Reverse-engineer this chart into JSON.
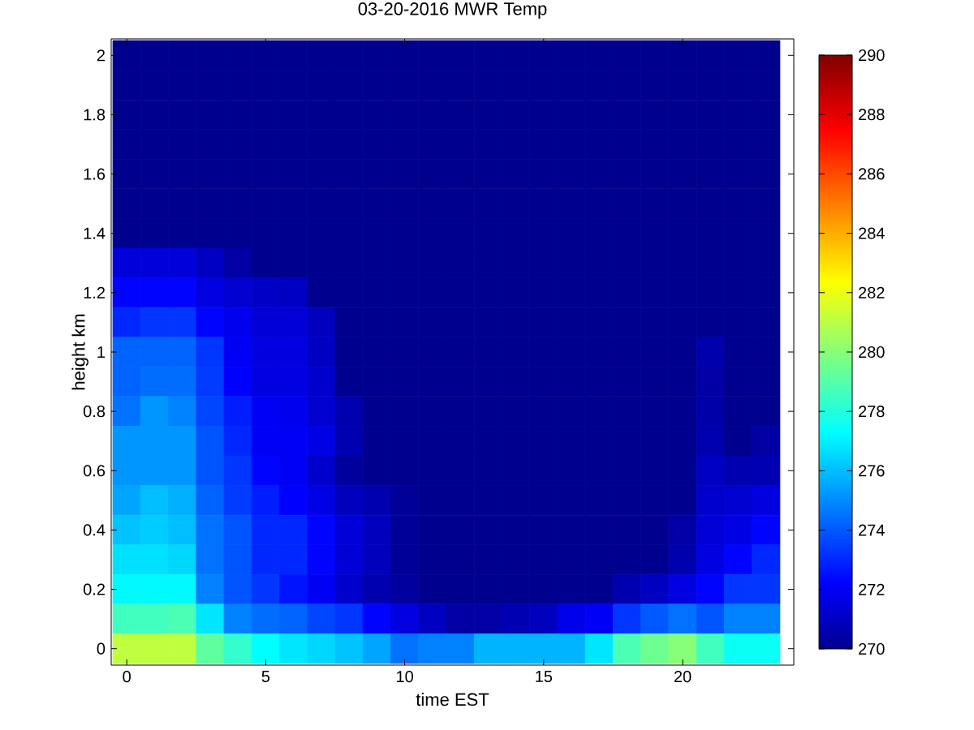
{
  "chart_data": {
    "type": "heatmap",
    "title": "03-20-2016 MWR Temp",
    "xlabel": "time EST",
    "ylabel": "height km",
    "categories": [
      "0",
      null,
      null,
      null,
      null,
      "5",
      null,
      null,
      null,
      null,
      "10",
      null,
      null,
      null,
      null,
      "15",
      null,
      null,
      null,
      null,
      "20",
      null,
      null,
      null
    ],
    "y_categories": [
      "2",
      null,
      "1.8",
      null,
      "1.6",
      null,
      "1.4",
      null,
      "1.2",
      null,
      "1",
      null,
      "0.8",
      null,
      "0.6",
      null,
      "0.4",
      null,
      "0.2",
      null,
      "0"
    ],
    "clim": [
      270,
      290
    ],
    "cticks": [
      270,
      272,
      274,
      276,
      278,
      280,
      282,
      284,
      286,
      288,
      290
    ],
    "cells": [
      [
        270,
        270,
        270,
        270,
        270,
        270,
        270,
        270,
        270,
        270,
        270,
        270,
        270,
        270,
        270,
        270,
        270,
        270,
        270,
        270,
        270,
        270,
        270,
        270
      ],
      [
        270,
        270,
        270,
        270,
        270,
        270,
        270,
        270,
        270,
        270,
        270,
        270,
        270,
        270,
        270,
        270,
        270,
        270,
        270,
        270,
        270,
        270,
        270,
        270
      ],
      [
        270,
        270,
        270,
        270,
        270,
        270,
        270,
        270,
        270,
        270,
        270,
        270,
        270,
        270,
        270,
        270,
        270,
        270,
        270,
        270,
        270,
        270,
        270,
        270
      ],
      [
        270,
        270,
        270,
        270,
        270,
        270,
        270,
        270,
        270,
        270,
        270,
        270,
        270,
        270,
        270,
        270,
        270,
        270,
        270,
        270,
        270,
        270,
        270,
        270
      ],
      [
        270,
        270,
        270,
        270,
        270,
        270,
        270,
        270,
        270,
        270,
        270,
        270,
        270,
        270,
        270,
        270,
        270,
        270,
        270,
        270,
        270,
        270,
        270,
        270
      ],
      [
        270,
        270,
        270,
        270,
        270,
        270,
        270,
        270,
        270,
        270,
        270,
        270,
        270,
        270,
        270,
        270,
        270,
        270,
        270,
        270,
        270,
        270,
        270,
        270
      ],
      [
        270,
        270,
        270,
        270,
        270,
        270,
        270,
        270,
        270,
        270,
        270,
        270,
        270,
        270,
        270,
        270,
        270,
        270,
        270,
        270,
        270,
        270,
        270,
        270
      ],
      [
        271.5,
        271.5,
        271.5,
        271.0,
        270.4,
        270,
        270,
        270,
        270,
        270,
        270,
        270,
        270,
        270,
        270,
        270,
        270,
        270,
        270,
        270,
        270,
        270,
        270,
        270
      ],
      [
        272.3,
        272.3,
        272.3,
        271.6,
        271.3,
        271.1,
        271.0,
        270,
        270,
        270,
        270,
        270,
        270,
        270,
        270,
        270,
        270,
        270,
        270,
        270,
        270,
        270,
        270,
        270
      ],
      [
        273.0,
        273.3,
        273.3,
        272.3,
        271.9,
        271.4,
        271.4,
        270.9,
        270,
        270,
        270,
        270,
        270,
        270,
        270,
        270,
        270,
        270,
        270,
        270,
        270,
        270,
        270,
        270
      ],
      [
        274.2,
        274.2,
        274.2,
        273.3,
        272.0,
        271.6,
        271.6,
        271.0,
        270,
        270,
        270,
        270,
        270,
        270,
        270,
        270,
        270,
        270,
        270,
        270,
        270,
        270.6,
        270,
        270
      ],
      [
        274.2,
        274.4,
        274.4,
        273.4,
        272.2,
        271.6,
        271.6,
        271.2,
        270,
        270,
        270,
        270,
        270,
        270,
        270,
        270,
        270,
        270,
        270,
        270,
        270,
        270.4,
        270,
        270
      ],
      [
        274.5,
        275.2,
        274.8,
        273.6,
        272.8,
        272.0,
        271.9,
        271.3,
        270.6,
        270,
        270,
        270,
        270,
        270,
        270,
        270,
        270,
        270,
        270,
        270,
        270,
        270.5,
        270,
        270
      ],
      [
        275.2,
        275.2,
        275.2,
        273.9,
        273.0,
        272.0,
        272.0,
        271.7,
        270.7,
        270,
        270,
        270,
        270,
        270,
        270,
        270,
        270,
        270,
        270,
        270,
        270,
        270.6,
        270,
        270.4
      ],
      [
        275.2,
        275.2,
        275.2,
        273.9,
        273.3,
        272.3,
        272.0,
        271.2,
        270.3,
        270,
        270,
        270,
        270,
        270,
        270,
        270,
        270,
        270,
        270,
        270,
        270,
        271.0,
        270.6,
        270.7
      ],
      [
        275.5,
        276.0,
        275.7,
        274.2,
        273.4,
        272.8,
        272.2,
        271.7,
        270.9,
        270.6,
        270.2,
        270,
        270,
        270,
        270,
        270,
        270,
        270,
        270,
        270,
        270,
        271.2,
        271.3,
        271.6
      ],
      [
        276.1,
        276.3,
        276.0,
        274.5,
        273.9,
        273.0,
        273.0,
        272.3,
        271.4,
        270.9,
        270.2,
        270,
        270,
        270,
        270,
        270,
        270,
        270,
        270,
        270,
        270.4,
        271.4,
        271.7,
        272.3
      ],
      [
        276.7,
        276.7,
        276.5,
        274.5,
        273.9,
        273.0,
        273.0,
        272.3,
        271.4,
        270.9,
        270.2,
        270,
        270,
        270,
        270,
        270,
        270,
        270,
        270,
        270,
        270.6,
        271.6,
        272.3,
        273.0
      ],
      [
        277.2,
        277.2,
        277.2,
        274.8,
        273.9,
        273.3,
        272.6,
        272.0,
        271.2,
        270.6,
        270.3,
        270,
        270,
        270,
        270,
        270,
        270,
        270,
        270.6,
        271.0,
        271.6,
        272.3,
        273.3,
        273.3
      ],
      [
        278.6,
        278.6,
        278.8,
        276.8,
        274.8,
        274.4,
        274.2,
        273.6,
        273.3,
        272.3,
        271.6,
        271.0,
        270.4,
        270.4,
        270.7,
        270.9,
        271.8,
        272.0,
        273.3,
        274.0,
        274.5,
        273.9,
        274.8,
        274.8
      ],
      [
        281.1,
        281.1,
        281.1,
        279.2,
        278.3,
        277.3,
        276.8,
        276.5,
        276.1,
        275.5,
        274.5,
        274.8,
        274.8,
        275.8,
        275.8,
        275.8,
        275.8,
        276.8,
        278.8,
        279.5,
        280.0,
        278.6,
        277.5,
        277.5
      ]
    ]
  }
}
